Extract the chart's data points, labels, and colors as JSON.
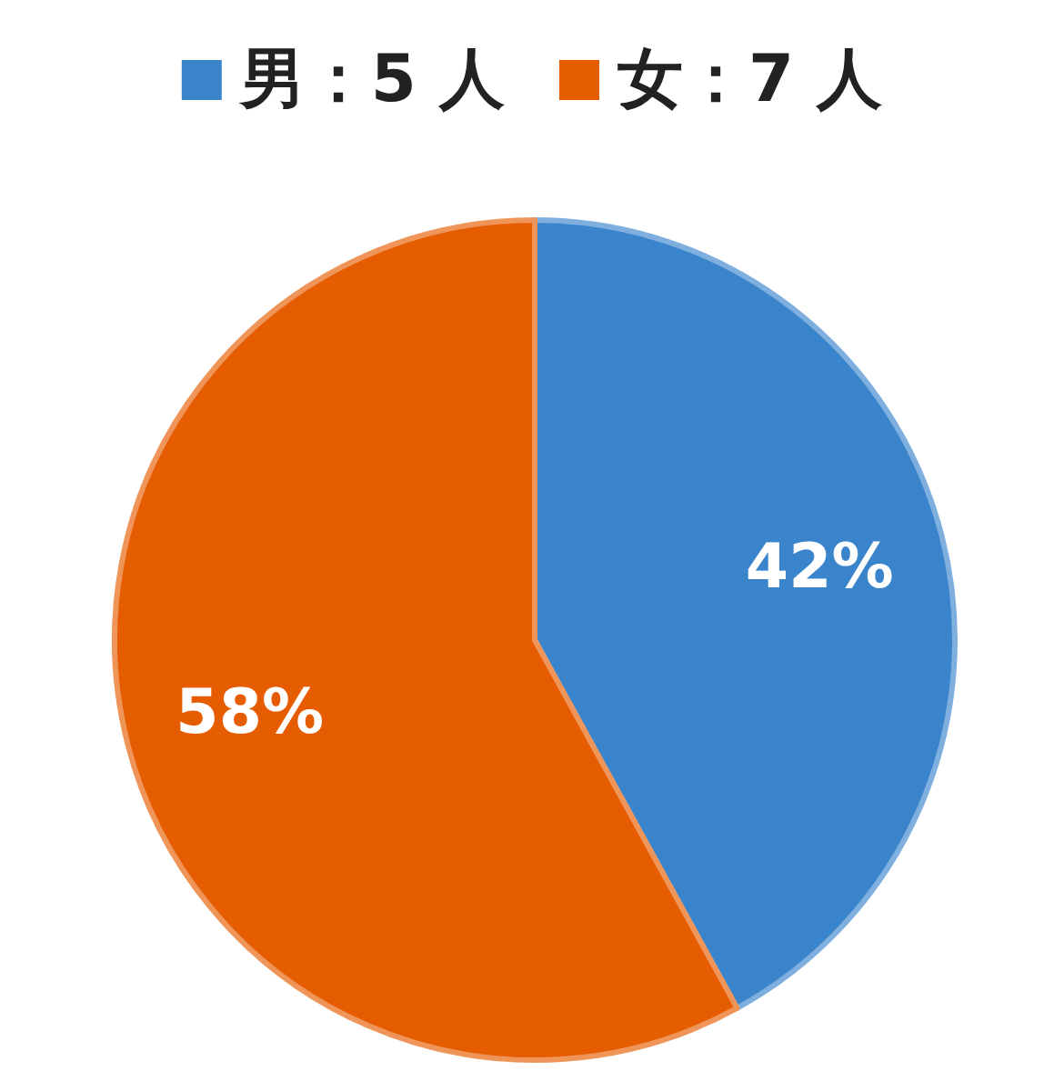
{
  "chart_data": {
    "type": "pie",
    "categories": [
      "男：5 人",
      "女：7 人"
    ],
    "values": [
      42,
      58
    ],
    "colors": [
      "#3a84cc",
      "#e65c00"
    ],
    "value_labels": [
      "42%",
      "58%"
    ],
    "legend": "top"
  }
}
